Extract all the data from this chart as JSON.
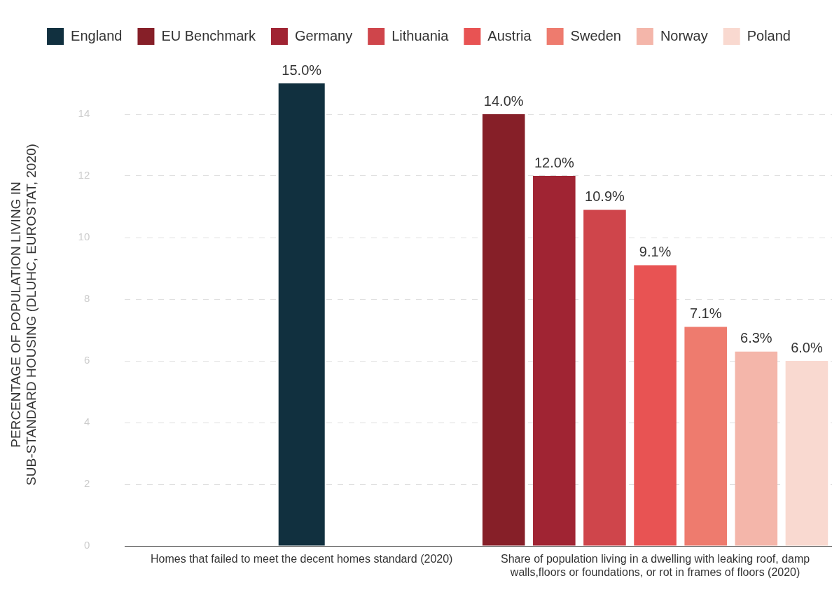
{
  "chart_data": {
    "type": "bar",
    "ylabel": "PERCENTAGE OF POPULATION LIVING IN SUB-STANDARD HOUSING (DLUHC, EUROSTAT, 2020)",
    "categories": [
      "Homes that failed to meet the decent homes standard (2020)",
      "Share of population living in a dwelling with leaking roof, damp walls,floors or foundations, or rot in frames of floors (2020)"
    ],
    "series": [
      {
        "name": "England",
        "color": "#11303f",
        "values": [
          15.0,
          null
        ],
        "value_labels": [
          "15.0%",
          null
        ]
      },
      {
        "name": "EU Benchmark",
        "color": "#861f28",
        "values": [
          null,
          14.0
        ],
        "value_labels": [
          null,
          "14.0%"
        ]
      },
      {
        "name": "Germany",
        "color": "#a02433",
        "values": [
          null,
          12.0
        ],
        "value_labels": [
          null,
          "12.0%"
        ]
      },
      {
        "name": "Lithuania",
        "color": "#cf454b",
        "values": [
          null,
          10.9
        ],
        "value_labels": [
          null,
          "10.9%"
        ]
      },
      {
        "name": "Austria",
        "color": "#e85353",
        "values": [
          null,
          9.1
        ],
        "value_labels": [
          null,
          "9.1%"
        ]
      },
      {
        "name": "Sweden",
        "color": "#ee7b6e",
        "values": [
          null,
          7.1
        ],
        "value_labels": [
          null,
          "7.1%"
        ]
      },
      {
        "name": "Norway",
        "color": "#f4b6aa",
        "values": [
          null,
          6.3
        ],
        "value_labels": [
          null,
          "6.3%"
        ]
      },
      {
        "name": "Poland",
        "color": "#f9d9d0",
        "values": [
          null,
          6.0
        ],
        "value_labels": [
          null,
          "6.0%"
        ]
      }
    ],
    "ylim": [
      0,
      15
    ],
    "yticks": [
      0,
      2,
      4,
      6,
      8,
      10,
      12,
      14
    ],
    "grid": "y",
    "legend": "top"
  }
}
